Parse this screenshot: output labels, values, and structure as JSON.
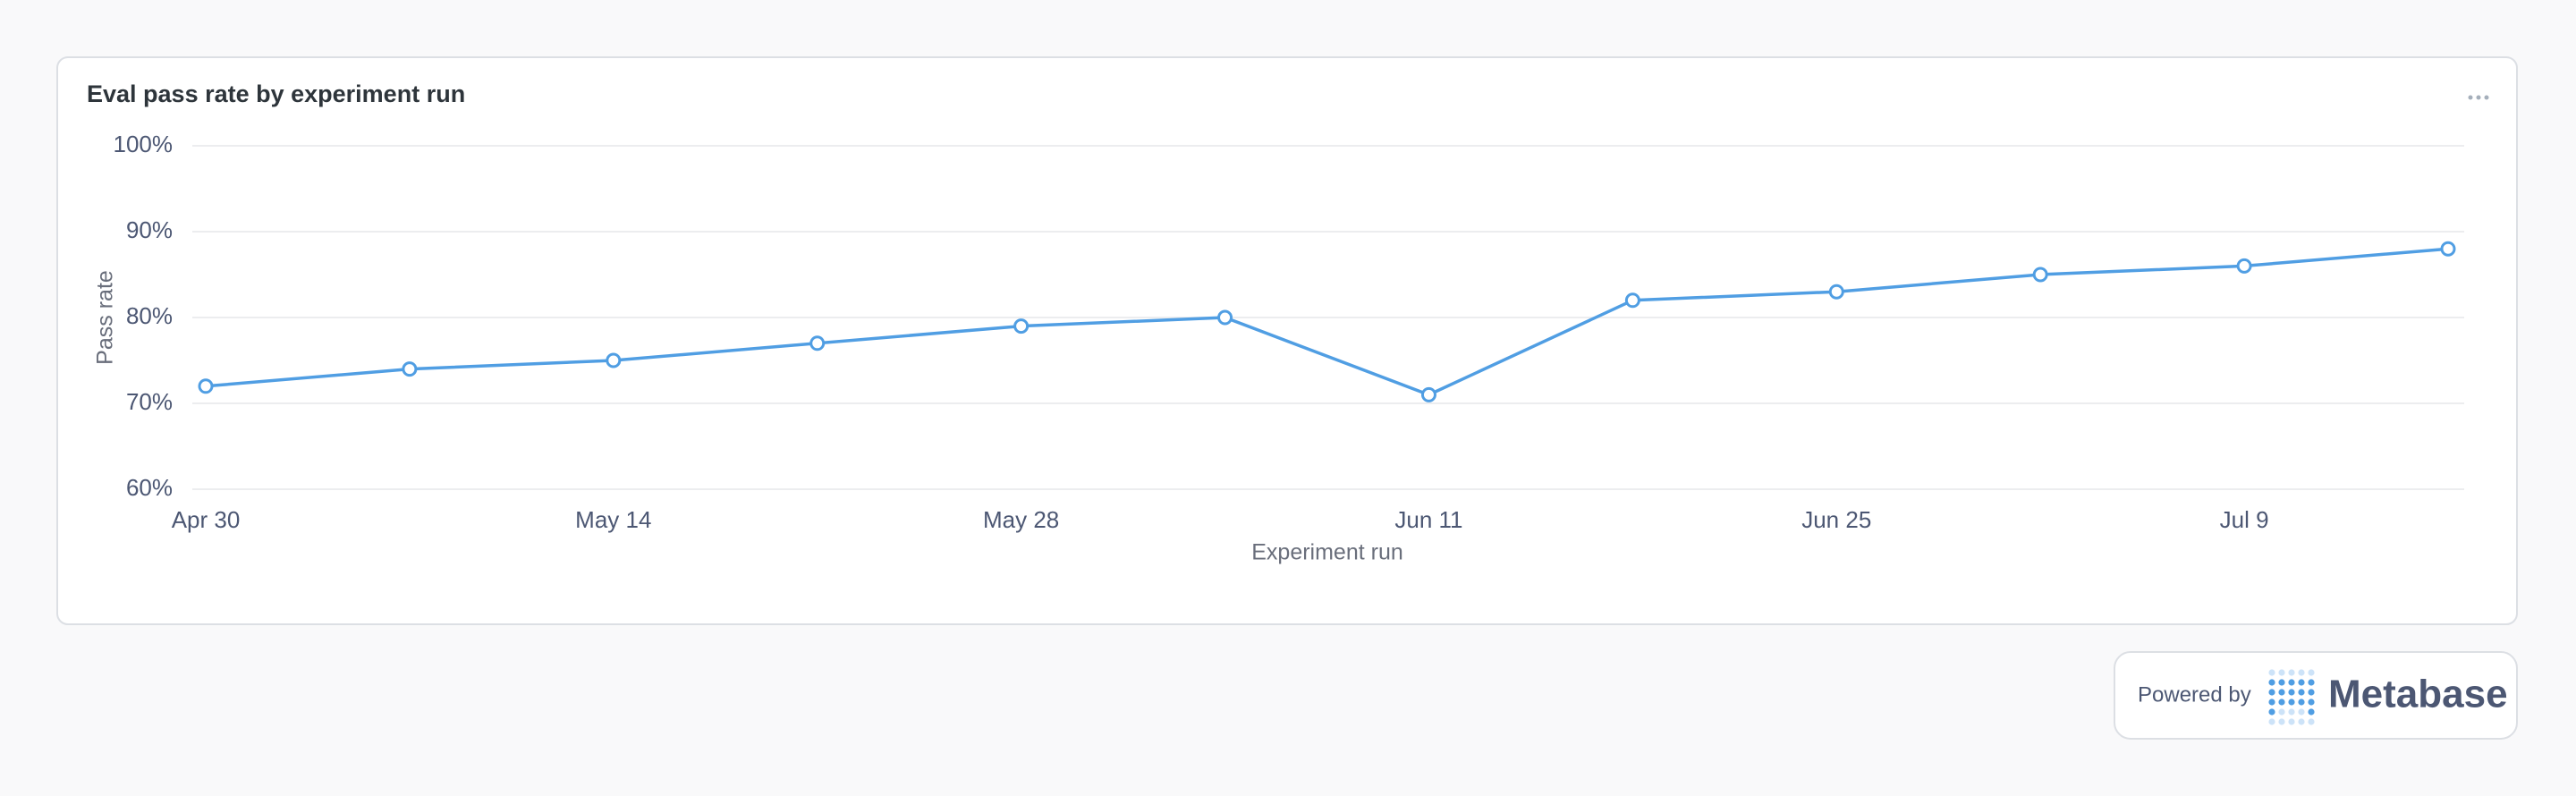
{
  "chart_data": {
    "type": "line",
    "title": "Eval pass rate by experiment run",
    "x_label": "Experiment run",
    "y_label": "Pass rate",
    "categories": [
      "Apr 30",
      null,
      "May 14",
      null,
      "May 28",
      null,
      "Jun 11",
      null,
      "Jun 25",
      null,
      "Jul 9",
      null
    ],
    "series": [
      {
        "name": "Pass rate",
        "color": "#509ee3",
        "values": [
          72,
          74,
          75,
          77,
          79,
          80,
          71,
          82,
          83,
          85,
          86,
          88
        ]
      }
    ],
    "ylim": [
      60,
      100
    ],
    "yticks": [
      {
        "value": 60,
        "label": "60%"
      },
      {
        "value": 70,
        "label": "70%"
      },
      {
        "value": 80,
        "label": "80%"
      },
      {
        "value": 90,
        "label": "90%"
      },
      {
        "value": 100,
        "label": "100%"
      }
    ],
    "grid": true
  },
  "footer": {
    "powered_by": "Powered by",
    "brand": "Metabase"
  }
}
